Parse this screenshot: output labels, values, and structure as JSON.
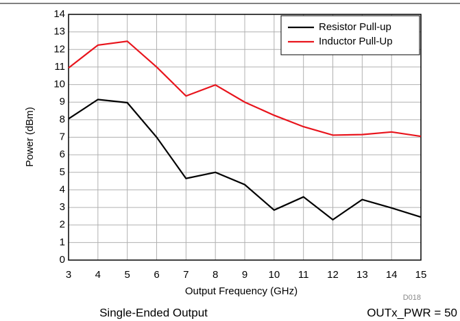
{
  "chart_data": {
    "type": "line",
    "xlabel": "Output Frequency (GHz)",
    "ylabel": "Power (dBm)",
    "x": [
      3,
      4,
      5,
      6,
      7,
      8,
      9,
      10,
      11,
      12,
      13,
      14,
      15
    ],
    "series": [
      {
        "name": "Resistor Pull-up",
        "color": "#000000",
        "values": [
          8.05,
          9.15,
          8.97,
          7.0,
          4.65,
          5.0,
          4.3,
          2.85,
          3.6,
          2.3,
          3.45,
          2.97,
          2.45
        ]
      },
      {
        "name": "Inductor Pull-Up",
        "color": "#e8141c",
        "values": [
          10.95,
          12.25,
          12.47,
          11.0,
          9.35,
          9.98,
          9.0,
          8.25,
          7.6,
          7.12,
          7.15,
          7.3,
          7.05
        ]
      }
    ],
    "xlim": [
      3,
      15
    ],
    "xticks": [
      3,
      4,
      5,
      6,
      7,
      8,
      9,
      10,
      11,
      12,
      13,
      14,
      15
    ],
    "ylim": [
      0,
      14
    ],
    "yticks": [
      0,
      1,
      2,
      3,
      4,
      5,
      6,
      7,
      8,
      9,
      10,
      11,
      12,
      13,
      14
    ],
    "grid": true,
    "legend": "upper right",
    "code": "D018",
    "caption_left": "Single-Ended Output",
    "caption_right": "OUTx_PWR = 50"
  }
}
